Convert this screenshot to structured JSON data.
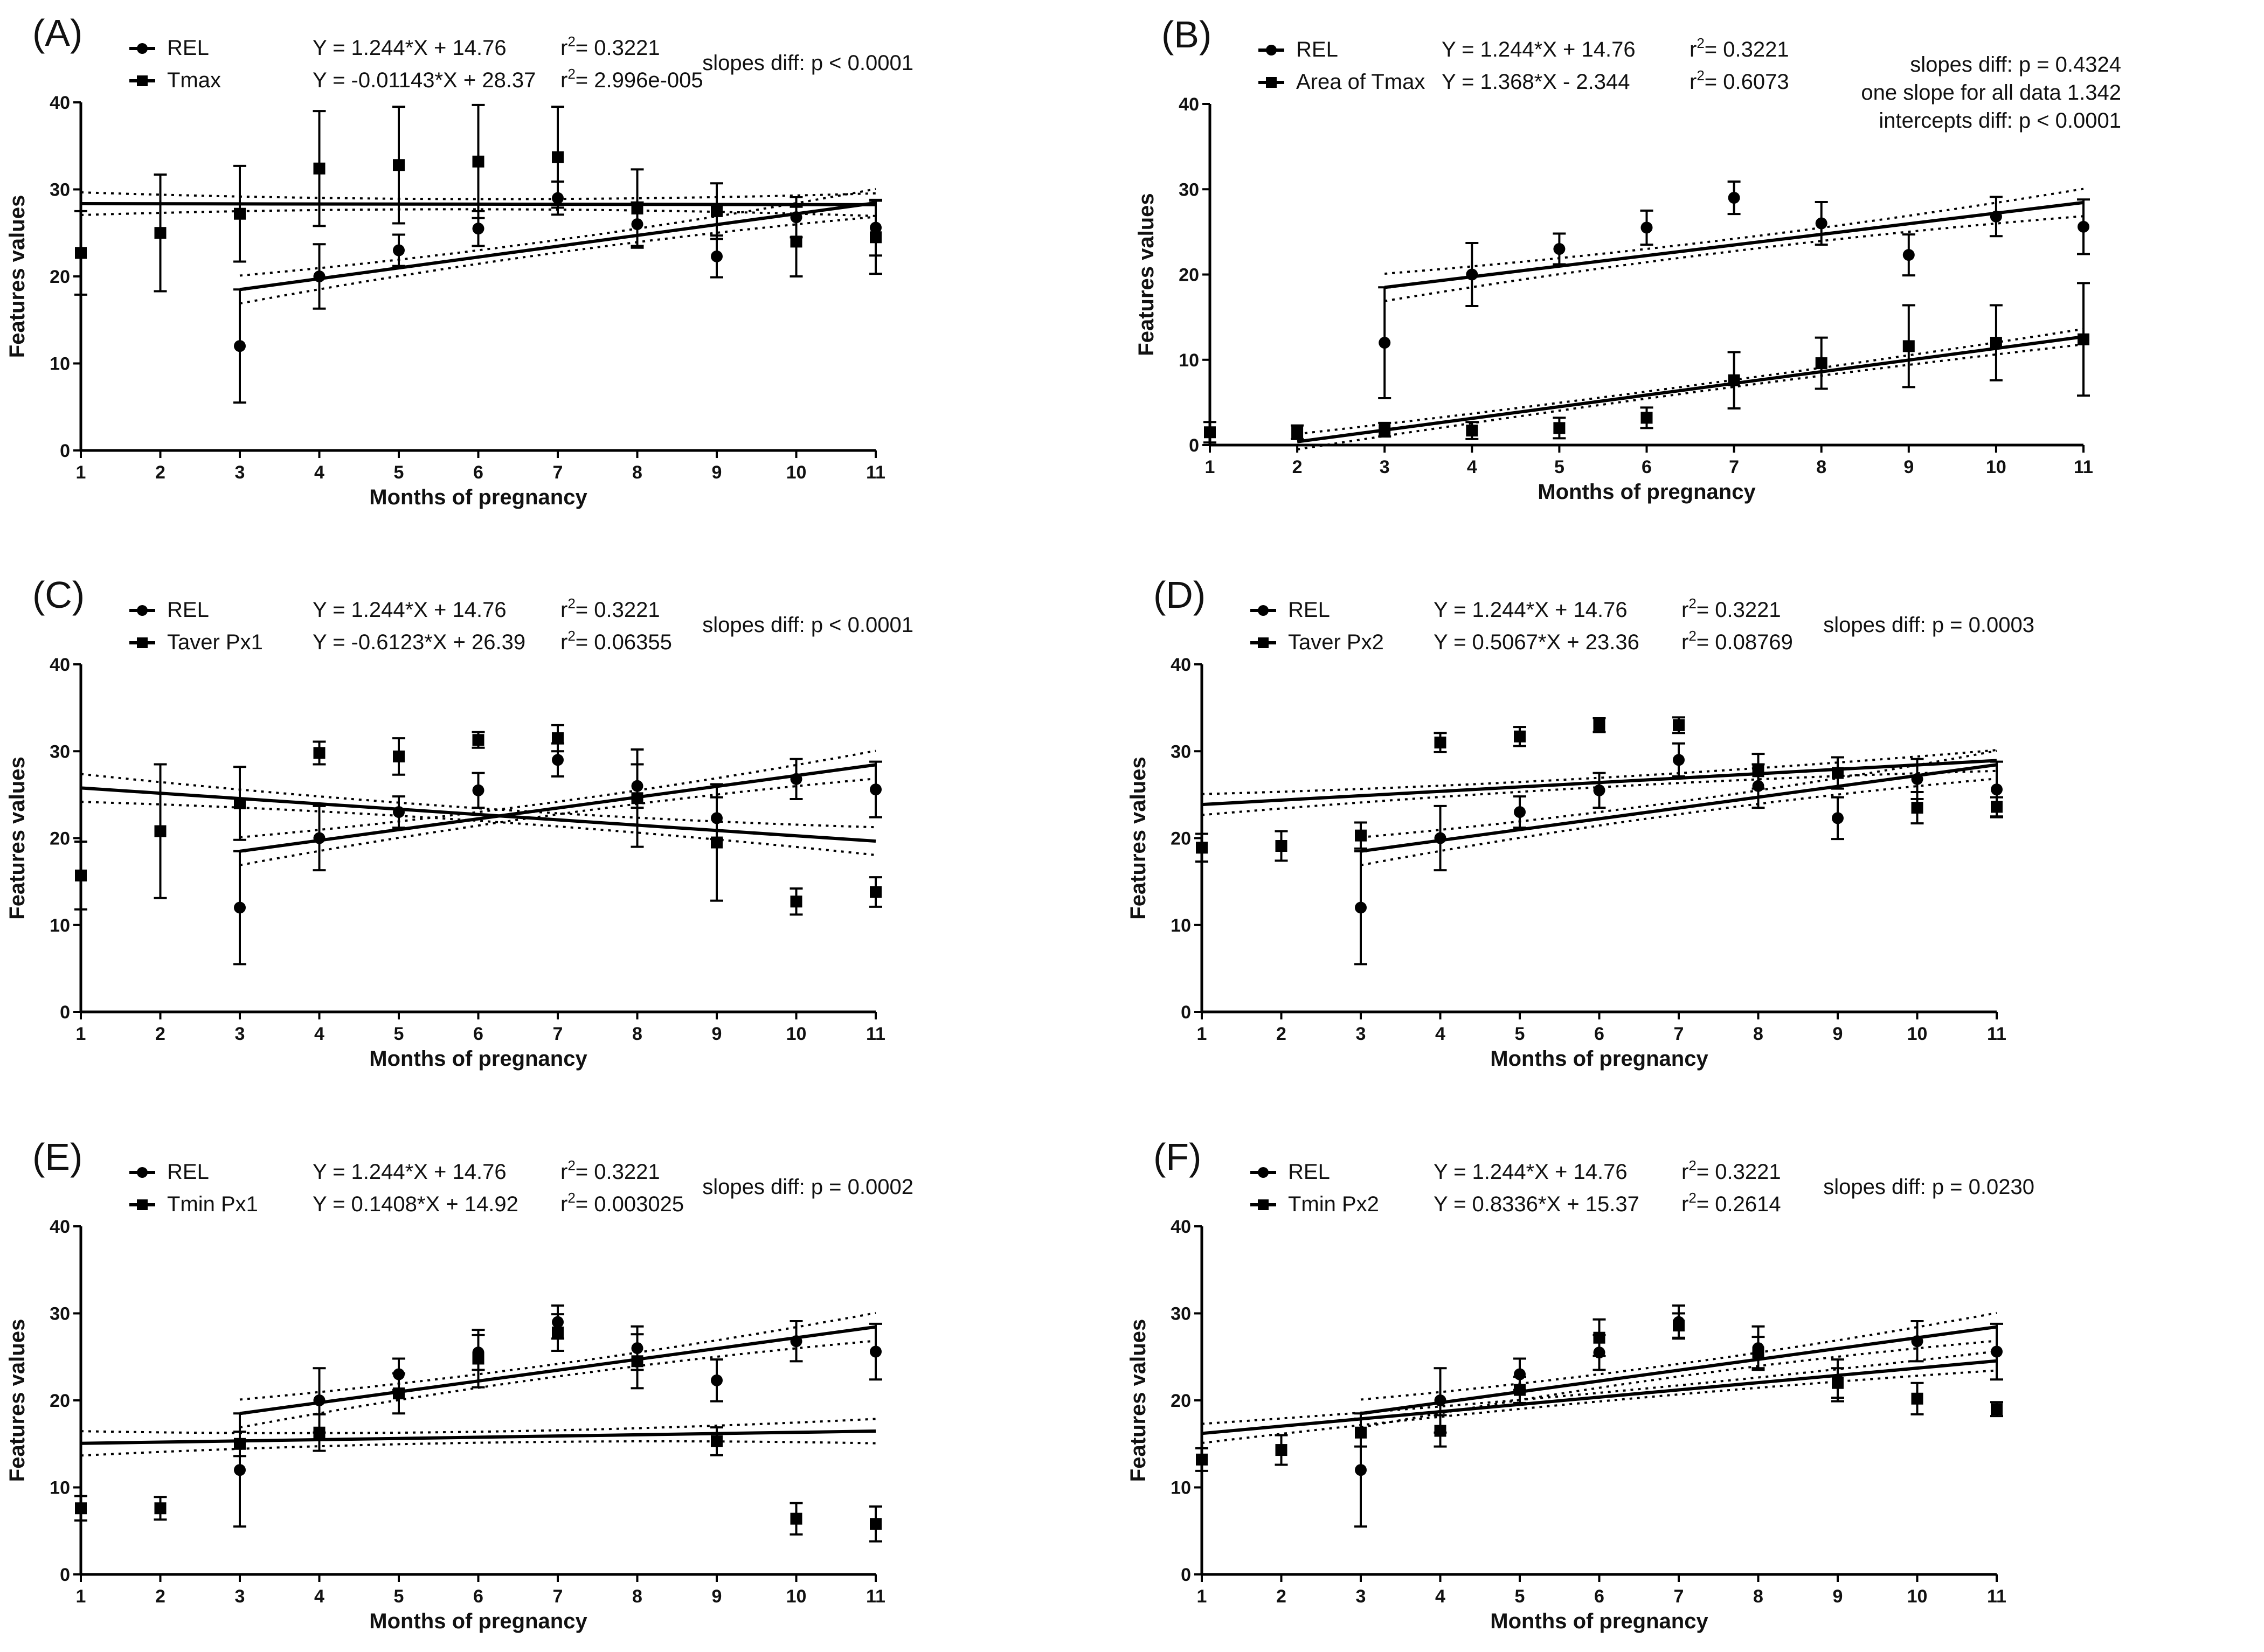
{
  "figure": {
    "common": {
      "x_label": "Months of pregnancy",
      "y_label": "Features values",
      "x_ticks": [
        1,
        2,
        3,
        4,
        5,
        6,
        7,
        8,
        9,
        10,
        11
      ],
      "y_ticks": [
        0,
        10,
        20,
        30,
        40
      ]
    }
  },
  "chart_data": [
    {
      "id": "A",
      "label": "(A)",
      "type": "scatter",
      "xlabel": "Months of pregnancy",
      "ylabel": "Features values",
      "xlim": [
        1,
        11
      ],
      "ylim": [
        0,
        40
      ],
      "stat_lines": [
        "slopes diff: p < 0.0001"
      ],
      "series": [
        {
          "name": "REL",
          "marker": "circle",
          "equation": "Y = 1.244*X + 14.76",
          "r2_value": "= 0.3221",
          "fit": {
            "slope": 1.244,
            "intercept": 14.76,
            "x_range": [
              3,
              11
            ]
          },
          "ci_offset": 1.6,
          "points": [
            {
              "x": 3,
              "y": 12,
              "err": 6.5
            },
            {
              "x": 4,
              "y": 20,
              "err": 3.7
            },
            {
              "x": 5,
              "y": 23,
              "err": 1.8
            },
            {
              "x": 6,
              "y": 25.5,
              "err": 2
            },
            {
              "x": 7,
              "y": 29,
              "err": 1.9
            },
            {
              "x": 8,
              "y": 26,
              "err": 2.5
            },
            {
              "x": 9,
              "y": 22.3,
              "err": 2.4
            },
            {
              "x": 10,
              "y": 26.8,
              "err": 2.3
            },
            {
              "x": 11,
              "y": 25.6,
              "err": 3.2
            }
          ]
        },
        {
          "name": "Tmax",
          "marker": "square",
          "equation": "Y = -0.01143*X + 28.37",
          "r2_value": "= 2.996e-005",
          "fit": {
            "slope": -0.01143,
            "intercept": 28.37,
            "x_range": [
              1,
              11
            ]
          },
          "ci_offset": 1.3,
          "points": [
            {
              "x": 1,
              "y": 22.7,
              "err": 4.8
            },
            {
              "x": 2,
              "y": 25,
              "err": 6.7
            },
            {
              "x": 3,
              "y": 27.2,
              "err": 5.5
            },
            {
              "x": 4,
              "y": 32.4,
              "err": 6.6
            },
            {
              "x": 5,
              "y": 32.8,
              "err": 6.7
            },
            {
              "x": 6,
              "y": 33.2,
              "err": 6.5
            },
            {
              "x": 7,
              "y": 33.7,
              "err": 5.8
            },
            {
              "x": 8,
              "y": 27.8,
              "err": 4.5
            },
            {
              "x": 9,
              "y": 27.5,
              "err": 3.2
            },
            {
              "x": 10,
              "y": 24,
              "err": 4
            },
            {
              "x": 11,
              "y": 24.5,
              "err": 4.2
            }
          ]
        }
      ]
    },
    {
      "id": "B",
      "label": "(B)",
      "type": "scatter",
      "xlabel": "Months of pregnancy",
      "ylabel": "Features values",
      "xlim": [
        1,
        11
      ],
      "ylim": [
        0,
        40
      ],
      "stat_lines": [
        "slopes diff: p = 0.4324",
        "one slope for all data  1.342",
        "intercepts diff: p < 0.0001"
      ],
      "series": [
        {
          "name": "REL",
          "marker": "circle",
          "equation": "Y = 1.244*X + 14.76",
          "r2_value": "= 0.3221",
          "fit": {
            "slope": 1.244,
            "intercept": 14.76,
            "x_range": [
              3,
              11
            ]
          },
          "ci_offset": 1.6,
          "points": [
            {
              "x": 3,
              "y": 12,
              "err": 6.5
            },
            {
              "x": 4,
              "y": 20,
              "err": 3.7
            },
            {
              "x": 5,
              "y": 23,
              "err": 1.8
            },
            {
              "x": 6,
              "y": 25.5,
              "err": 2
            },
            {
              "x": 7,
              "y": 29,
              "err": 1.9
            },
            {
              "x": 8,
              "y": 26,
              "err": 2.5
            },
            {
              "x": 9,
              "y": 22.3,
              "err": 2.4
            },
            {
              "x": 10,
              "y": 26.8,
              "err": 2.3
            },
            {
              "x": 11,
              "y": 25.6,
              "err": 3.2
            }
          ]
        },
        {
          "name": "Area of Tmax",
          "marker": "square",
          "equation": "Y = 1.368*X - 2.344",
          "r2_value": "= 0.6073",
          "fit": {
            "slope": 1.368,
            "intercept": -2.344,
            "x_range": [
              2,
              11
            ]
          },
          "ci_offset": 0.9,
          "points": [
            {
              "x": 1,
              "y": 1.5,
              "err": 1.2
            },
            {
              "x": 2,
              "y": 1.5,
              "err": 0.8
            },
            {
              "x": 3,
              "y": 1.8,
              "err": 0.8
            },
            {
              "x": 4,
              "y": 1.7,
              "err": 1
            },
            {
              "x": 5,
              "y": 2,
              "err": 1.2
            },
            {
              "x": 6,
              "y": 3.2,
              "err": 1.2
            },
            {
              "x": 7,
              "y": 7.6,
              "err": 3.3
            },
            {
              "x": 8,
              "y": 9.6,
              "err": 3
            },
            {
              "x": 9,
              "y": 11.6,
              "err": 4.8
            },
            {
              "x": 10,
              "y": 12,
              "err": 4.4
            },
            {
              "x": 11,
              "y": 12.4,
              "err": 6.6
            }
          ]
        }
      ]
    },
    {
      "id": "C",
      "label": "(C)",
      "type": "scatter",
      "xlabel": "Months of pregnancy",
      "ylabel": "Features values",
      "xlim": [
        1,
        11
      ],
      "ylim": [
        0,
        40
      ],
      "stat_lines": [
        "slopes diff: p < 0.0001"
      ],
      "series": [
        {
          "name": "REL",
          "marker": "circle",
          "equation": "Y = 1.244*X + 14.76",
          "r2_value": "= 0.3221",
          "fit": {
            "slope": 1.244,
            "intercept": 14.76,
            "x_range": [
              3,
              11
            ]
          },
          "ci_offset": 1.6,
          "points": [
            {
              "x": 3,
              "y": 12,
              "err": 6.5
            },
            {
              "x": 4,
              "y": 20,
              "err": 3.7
            },
            {
              "x": 5,
              "y": 23,
              "err": 1.8
            },
            {
              "x": 6,
              "y": 25.5,
              "err": 2
            },
            {
              "x": 7,
              "y": 29,
              "err": 1.9
            },
            {
              "x": 8,
              "y": 26,
              "err": 2.5
            },
            {
              "x": 9,
              "y": 22.3,
              "err": 2.4
            },
            {
              "x": 10,
              "y": 26.8,
              "err": 2.3
            },
            {
              "x": 11,
              "y": 25.6,
              "err": 3.2
            }
          ]
        },
        {
          "name": "Taver Px1",
          "marker": "square",
          "equation": "Y = -0.6123*X + 26.39",
          "r2_value": "= 0.06355",
          "fit": {
            "slope": -0.6123,
            "intercept": 26.39,
            "x_range": [
              1,
              11
            ]
          },
          "ci_offset": 1.6,
          "points": [
            {
              "x": 1,
              "y": 15.7,
              "err": 3.9
            },
            {
              "x": 2,
              "y": 20.8,
              "err": 7.7
            },
            {
              "x": 3,
              "y": 24,
              "err": 4.2
            },
            {
              "x": 4,
              "y": 29.8,
              "err": 1.3
            },
            {
              "x": 5,
              "y": 29.4,
              "err": 2.1
            },
            {
              "x": 6,
              "y": 31.3,
              "err": 0.9
            },
            {
              "x": 7,
              "y": 31.5,
              "err": 1.5
            },
            {
              "x": 8,
              "y": 24.6,
              "err": 5.6
            },
            {
              "x": 9,
              "y": 19.5,
              "err": 6.7
            },
            {
              "x": 10,
              "y": 12.7,
              "err": 1.5
            },
            {
              "x": 11,
              "y": 13.8,
              "err": 1.7
            }
          ]
        }
      ]
    },
    {
      "id": "D",
      "label": "(D)",
      "type": "scatter",
      "xlabel": "Months of pregnancy",
      "ylabel": "Features values",
      "xlim": [
        1,
        11
      ],
      "ylim": [
        0,
        40
      ],
      "stat_lines": [
        "slopes diff: p = 0.0003"
      ],
      "series": [
        {
          "name": "REL",
          "marker": "circle",
          "equation": "Y = 1.244*X + 14.76",
          "r2_value": "= 0.3221",
          "fit": {
            "slope": 1.244,
            "intercept": 14.76,
            "x_range": [
              3,
              11
            ]
          },
          "ci_offset": 1.6,
          "points": [
            {
              "x": 3,
              "y": 12,
              "err": 6.5
            },
            {
              "x": 4,
              "y": 20,
              "err": 3.7
            },
            {
              "x": 5,
              "y": 23,
              "err": 1.8
            },
            {
              "x": 6,
              "y": 25.5,
              "err": 2
            },
            {
              "x": 7,
              "y": 29,
              "err": 1.9
            },
            {
              "x": 8,
              "y": 26,
              "err": 2.5
            },
            {
              "x": 9,
              "y": 22.3,
              "err": 2.4
            },
            {
              "x": 10,
              "y": 26.8,
              "err": 2.3
            },
            {
              "x": 11,
              "y": 25.6,
              "err": 3.2
            }
          ]
        },
        {
          "name": "Taver Px2",
          "marker": "square",
          "equation": "Y = 0.5067*X + 23.36",
          "r2_value": "= 0.08769",
          "fit": {
            "slope": 0.5067,
            "intercept": 23.36,
            "x_range": [
              1,
              11
            ]
          },
          "ci_offset": 1.2,
          "points": [
            {
              "x": 1,
              "y": 18.9,
              "err": 1.6
            },
            {
              "x": 2,
              "y": 19.1,
              "err": 1.7
            },
            {
              "x": 3,
              "y": 20.3,
              "err": 1.5
            },
            {
              "x": 4,
              "y": 31,
              "err": 1.1
            },
            {
              "x": 5,
              "y": 31.7,
              "err": 1.1
            },
            {
              "x": 6,
              "y": 33,
              "err": 0.8
            },
            {
              "x": 7,
              "y": 33,
              "err": 0.9
            },
            {
              "x": 8,
              "y": 27.7,
              "err": 2
            },
            {
              "x": 9,
              "y": 27.5,
              "err": 1.8
            },
            {
              "x": 10,
              "y": 23.5,
              "err": 1.8
            },
            {
              "x": 11,
              "y": 23.6,
              "err": 1.1
            }
          ]
        }
      ]
    },
    {
      "id": "E",
      "label": "(E)",
      "type": "scatter",
      "xlabel": "Months of pregnancy",
      "ylabel": "Features values",
      "xlim": [
        1,
        11
      ],
      "ylim": [
        0,
        40
      ],
      "stat_lines": [
        "slopes diff: p = 0.0002"
      ],
      "series": [
        {
          "name": "REL",
          "marker": "circle",
          "equation": "Y = 1.244*X + 14.76",
          "r2_value": "= 0.3221",
          "fit": {
            "slope": 1.244,
            "intercept": 14.76,
            "x_range": [
              3,
              11
            ]
          },
          "ci_offset": 1.6,
          "points": [
            {
              "x": 3,
              "y": 12,
              "err": 6.5
            },
            {
              "x": 4,
              "y": 20,
              "err": 3.7
            },
            {
              "x": 5,
              "y": 23,
              "err": 1.8
            },
            {
              "x": 6,
              "y": 25.5,
              "err": 2
            },
            {
              "x": 7,
              "y": 29,
              "err": 1.9
            },
            {
              "x": 8,
              "y": 26,
              "err": 2.5
            },
            {
              "x": 9,
              "y": 22.3,
              "err": 2.4
            },
            {
              "x": 10,
              "y": 26.8,
              "err": 2.3
            },
            {
              "x": 11,
              "y": 25.6,
              "err": 3.2
            }
          ]
        },
        {
          "name": "Tmin Px1",
          "marker": "square",
          "equation": "Y = 0.1408*X + 14.92",
          "r2_value": "= 0.003025",
          "fit": {
            "slope": 0.1408,
            "intercept": 14.92,
            "x_range": [
              1,
              11
            ]
          },
          "ci_offset": 1.4,
          "points": [
            {
              "x": 1,
              "y": 7.6,
              "err": 1.4
            },
            {
              "x": 2,
              "y": 7.6,
              "err": 1.3
            },
            {
              "x": 3,
              "y": 15,
              "err": 1.4
            },
            {
              "x": 4,
              "y": 16.3,
              "err": 2.1
            },
            {
              "x": 5,
              "y": 20.8,
              "err": 2.3
            },
            {
              "x": 6,
              "y": 24.8,
              "err": 3.3
            },
            {
              "x": 7,
              "y": 27.8,
              "err": 2.1
            },
            {
              "x": 8,
              "y": 24.5,
              "err": 3.1
            },
            {
              "x": 9,
              "y": 15.3,
              "err": 1.6
            },
            {
              "x": 10,
              "y": 6.4,
              "err": 1.8
            },
            {
              "x": 11,
              "y": 5.8,
              "err": 2
            }
          ]
        }
      ]
    },
    {
      "id": "F",
      "label": "(F)",
      "type": "scatter",
      "xlabel": "Months of pregnancy",
      "ylabel": "Features values",
      "xlim": [
        1,
        11
      ],
      "ylim": [
        0,
        40
      ],
      "stat_lines": [
        "slopes diff: p = 0.0230"
      ],
      "series": [
        {
          "name": "REL",
          "marker": "circle",
          "equation": "Y = 1.244*X + 14.76",
          "r2_value": "= 0.3221",
          "fit": {
            "slope": 1.244,
            "intercept": 14.76,
            "x_range": [
              3,
              11
            ]
          },
          "ci_offset": 1.6,
          "points": [
            {
              "x": 3,
              "y": 12,
              "err": 6.5
            },
            {
              "x": 4,
              "y": 20,
              "err": 3.7
            },
            {
              "x": 5,
              "y": 23,
              "err": 1.8
            },
            {
              "x": 6,
              "y": 25.5,
              "err": 2
            },
            {
              "x": 7,
              "y": 29,
              "err": 1.9
            },
            {
              "x": 8,
              "y": 26,
              "err": 2.5
            },
            {
              "x": 9,
              "y": 22.3,
              "err": 2.4
            },
            {
              "x": 10,
              "y": 26.8,
              "err": 2.3
            },
            {
              "x": 11,
              "y": 25.6,
              "err": 3.2
            }
          ]
        },
        {
          "name": "Tmin Px2",
          "marker": "square",
          "equation": "Y = 0.8336*X + 15.37",
          "r2_value": "= 0.2614",
          "fit": {
            "slope": 0.8336,
            "intercept": 15.37,
            "x_range": [
              1,
              11
            ]
          },
          "ci_offset": 1.1,
          "points": [
            {
              "x": 1,
              "y": 13.2,
              "err": 1.3
            },
            {
              "x": 2,
              "y": 14.3,
              "err": 1.7
            },
            {
              "x": 3,
              "y": 16.3,
              "err": 1.6
            },
            {
              "x": 4,
              "y": 16.5,
              "err": 1.8
            },
            {
              "x": 5,
              "y": 21.2,
              "err": 1.5
            },
            {
              "x": 6,
              "y": 27.2,
              "err": 2.1
            },
            {
              "x": 7,
              "y": 28.6,
              "err": 1.4
            },
            {
              "x": 8,
              "y": 25.5,
              "err": 1.8
            },
            {
              "x": 9,
              "y": 22,
              "err": 1.7
            },
            {
              "x": 10,
              "y": 20.2,
              "err": 1.8
            },
            {
              "x": 11,
              "y": 19,
              "err": 0.8
            }
          ]
        }
      ]
    }
  ]
}
